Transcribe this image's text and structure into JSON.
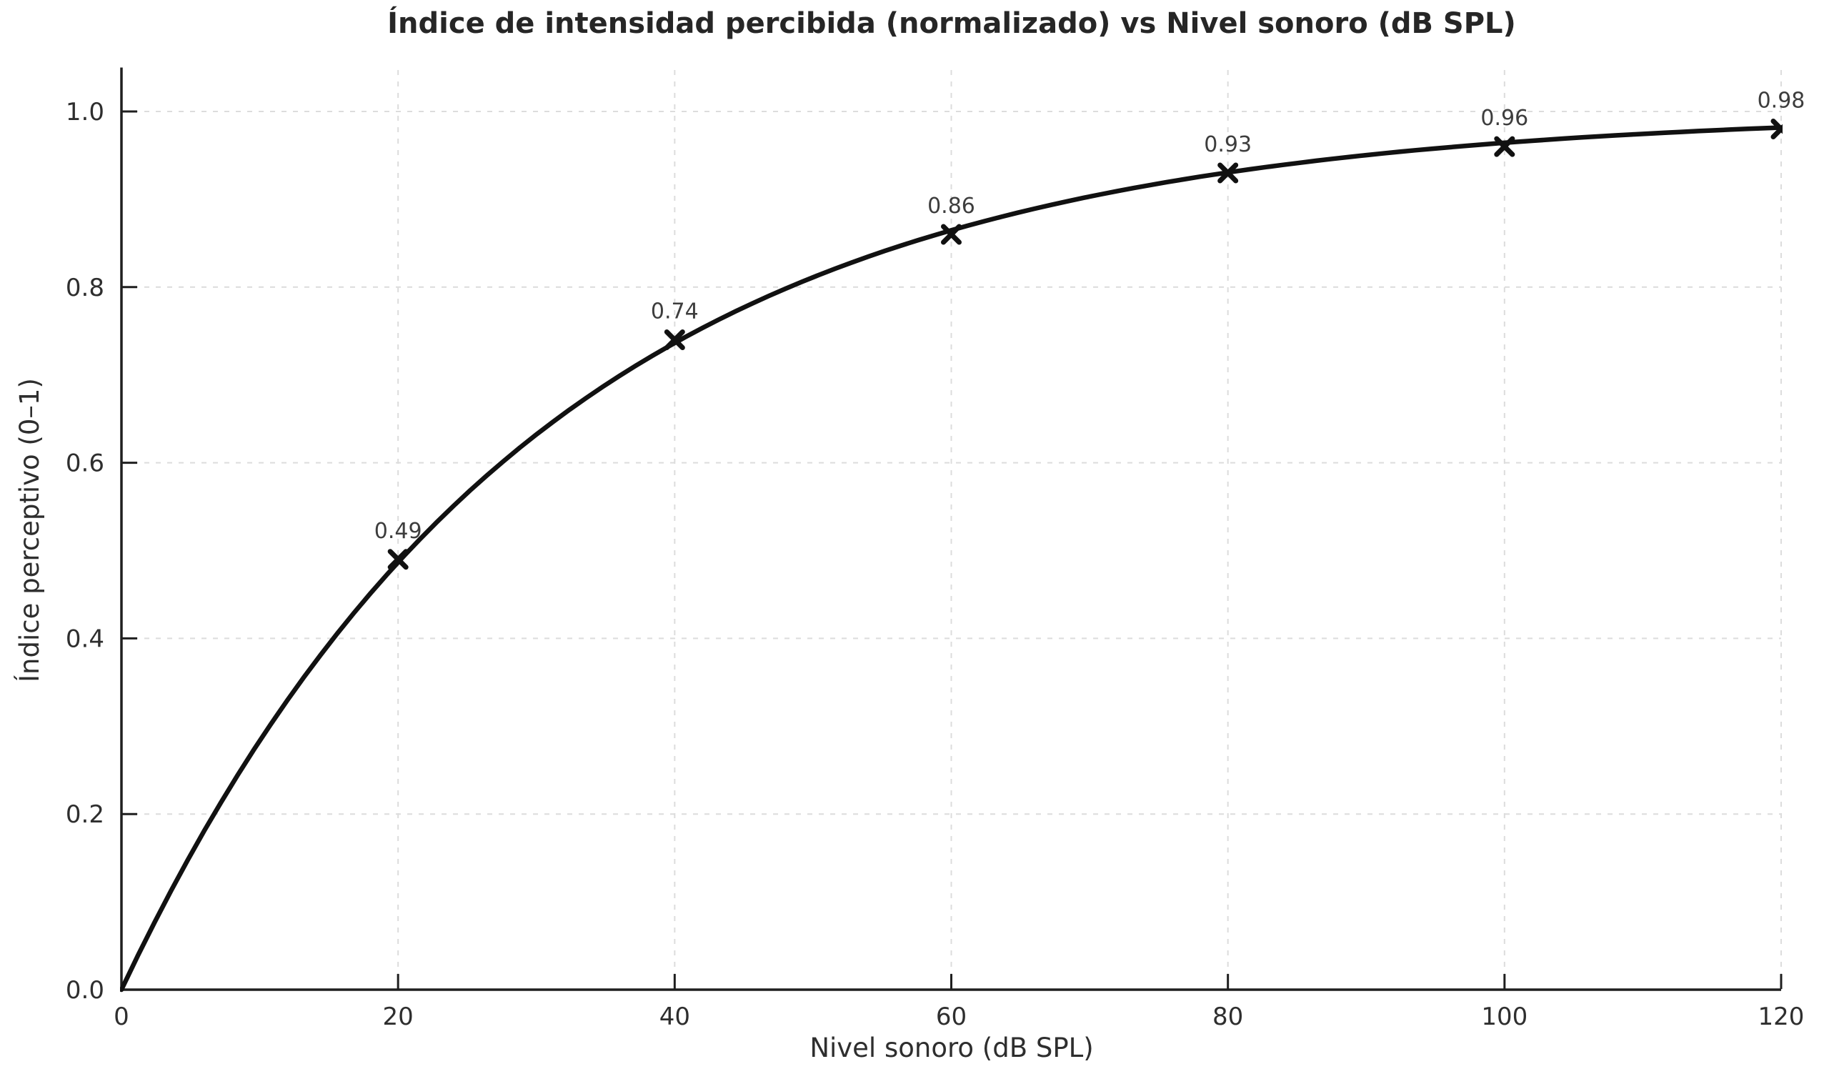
{
  "chart_data": {
    "type": "line",
    "title": "Índice de intensidad percibida (normalizado) vs Nivel sonoro (dB SPL)",
    "xlabel": "Nivel sonoro (dB SPL)",
    "ylabel": "Índice perceptivo (0–1)",
    "x": [
      0,
      20,
      40,
      60,
      80,
      100,
      120
    ],
    "y": [
      0.0,
      0.49,
      0.74,
      0.86,
      0.93,
      0.96,
      0.98
    ],
    "data_labels": [
      null,
      "0.49",
      "0.74",
      "0.86",
      "0.93",
      "0.96",
      "0.98"
    ],
    "curve_model": "y = 1 - exp(-x/30), smooth dense curve through points",
    "marker": "x",
    "xlim": [
      0,
      120
    ],
    "ylim": [
      0,
      1.05
    ],
    "xticks": [
      0,
      20,
      40,
      60,
      80,
      100,
      120
    ],
    "xtick_labels": [
      "0",
      "20",
      "40",
      "60",
      "80",
      "100",
      "120"
    ],
    "yticks": [
      0.0,
      0.2,
      0.4,
      0.6,
      0.8,
      1.0
    ],
    "ytick_labels": [
      "0.0",
      "0.2",
      "0.4",
      "0.6",
      "0.8",
      "1.0"
    ],
    "grid": true,
    "grid_style": "dashed",
    "legend": false,
    "spines": "left and bottom only, ticks pointing inward",
    "colors": {
      "line": "#111111",
      "marker": "#111111",
      "grid": "#dcdcdc",
      "spine": "#1f1f1f",
      "tick_text": "#2e2e2e",
      "title_text": "#262626",
      "axis_label_text": "#2e2e2e",
      "point_label_text": "#3d3d3d",
      "background": "#ffffff"
    }
  }
}
